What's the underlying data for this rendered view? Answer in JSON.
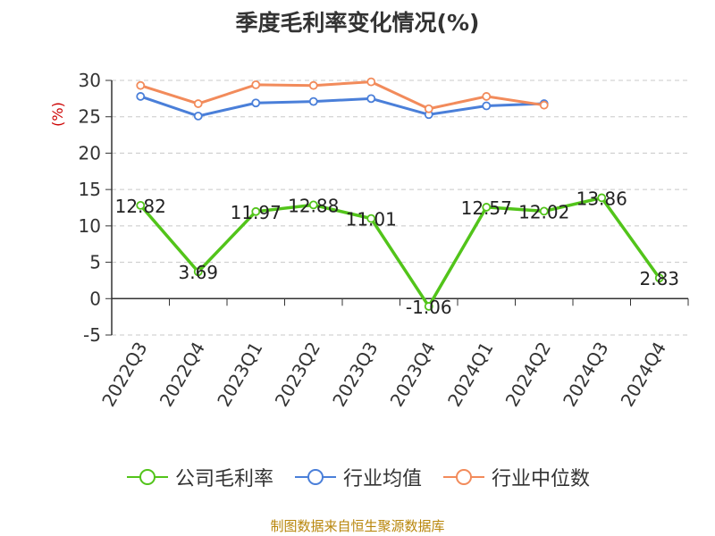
{
  "chart_data": {
    "type": "line",
    "title": "季度毛利率变化情况(%)",
    "ylabel": "(%)",
    "xlabel": "",
    "ylim": [
      -5,
      30
    ],
    "yticks": [
      -5,
      0,
      5,
      10,
      15,
      20,
      25,
      30
    ],
    "grid": true,
    "legend_position": "bottom",
    "categories": [
      "2022Q3",
      "2022Q4",
      "2023Q1",
      "2023Q2",
      "2023Q3",
      "2023Q4",
      "2024Q1",
      "2024Q2",
      "2024Q3",
      "2024Q4"
    ],
    "series": [
      {
        "name": "公司毛利率",
        "color": "#52c41a",
        "values": [
          12.82,
          3.69,
          11.97,
          12.88,
          11.01,
          -1.06,
          12.57,
          12.02,
          13.86,
          2.83
        ],
        "labels": [
          "12.82",
          "3.69",
          "11.97",
          "12.88",
          "11.01",
          "-1.06",
          "12.57",
          "12.02",
          "13.86",
          "2.83"
        ]
      },
      {
        "name": "行业均值",
        "color": "#4a7fd9",
        "values": [
          27.8,
          25.1,
          26.9,
          27.1,
          27.5,
          25.3,
          26.5,
          26.8,
          null,
          null
        ]
      },
      {
        "name": "行业中位数",
        "color": "#f28b5b",
        "values": [
          29.3,
          26.8,
          29.4,
          29.3,
          29.8,
          26.1,
          27.8,
          26.6,
          null,
          null
        ]
      }
    ]
  },
  "source": "制图数据来自恒生聚源数据库"
}
